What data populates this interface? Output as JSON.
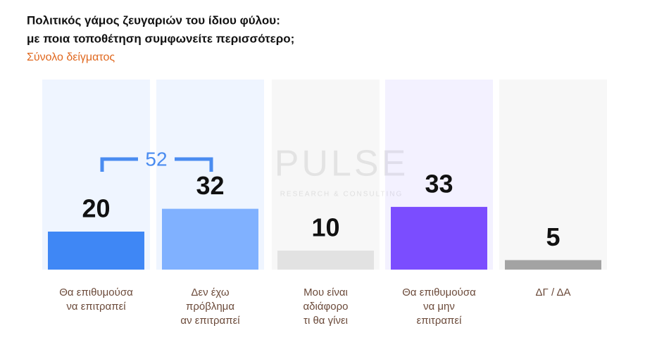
{
  "chart_data": {
    "type": "bar",
    "title": [
      "Πολιτικός γάμος ζευγαριών του ίδιου φύλου:",
      "με ποια τοποθέτηση συμφωνείτε περισσότερο;"
    ],
    "subtitle": "Σύνολο δείγματος",
    "categories": [
      [
        "Θα επιθυμούσα",
        "να επιτραπεί"
      ],
      [
        "Δεν έχω",
        "πρόβλημα",
        "αν επιτραπεί"
      ],
      [
        "Μου είναι",
        "αδιάφορο",
        "τι θα γίνει"
      ],
      [
        "Θα επιθυμούσα",
        "να μην",
        "επιτραπεί"
      ],
      [
        "ΔΓ / ΔΑ"
      ]
    ],
    "values": [
      20,
      32,
      10,
      33,
      5
    ],
    "colors": [
      "#3f87f5",
      "#80b1ff",
      "#e2e2e2",
      "#7b4dff",
      "#a3a3a3"
    ],
    "background_colors": [
      "#eff5ff",
      "#eff5ff",
      "#f7f7f7",
      "#f3f1ff",
      "#f7f7f7"
    ],
    "ylim": [
      0,
      100
    ],
    "bracket_label": "52",
    "watermark": [
      "PULSE",
      "RESEARCH & CONSULTING"
    ]
  }
}
